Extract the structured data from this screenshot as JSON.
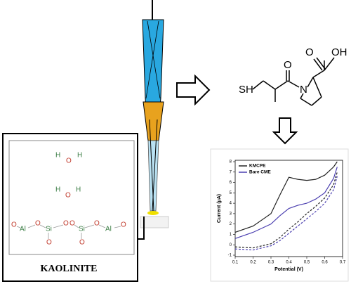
{
  "kaolinite": {
    "title": "KAOLINITE",
    "water1": [
      "H",
      "O",
      "H"
    ],
    "water2": [
      "H",
      "O",
      "H"
    ],
    "chain": [
      "O",
      "Al",
      "O",
      "Si",
      "O",
      "O",
      "Si",
      "O",
      "Al",
      "O",
      "O",
      "O"
    ]
  },
  "molecule": {
    "labels": [
      "SH",
      "N",
      "O",
      "O",
      "OH"
    ]
  },
  "chart_data": {
    "type": "line",
    "x_label": "Potential (V)",
    "y_label": "Current (µA)",
    "x": [
      0.1,
      0.2,
      0.3,
      0.35,
      0.4,
      0.45,
      0.5,
      0.55,
      0.6,
      0.65,
      0.67
    ],
    "series": [
      {
        "name": "KMCPE",
        "color": "#222222",
        "values": [
          1.2,
          1.8,
          3.0,
          4.8,
          6.5,
          6.3,
          6.2,
          6.3,
          6.7,
          7.5,
          8.0
        ],
        "return_values": [
          -0.2,
          -0.3,
          0.1,
          0.7,
          1.5,
          2.2,
          3.0,
          3.7,
          4.5,
          5.8,
          7.0
        ]
      },
      {
        "name": "Bare CME",
        "color": "#4b3fb0",
        "values": [
          0.6,
          1.2,
          2.0,
          2.8,
          3.5,
          3.8,
          4.0,
          4.4,
          5.0,
          6.4,
          7.5
        ],
        "return_values": [
          -0.4,
          -0.5,
          -0.1,
          0.4,
          1.1,
          1.8,
          2.5,
          3.2,
          4.0,
          5.3,
          6.6
        ]
      }
    ],
    "xlim": [
      0.1,
      0.7
    ],
    "ylim": [
      -1,
      8
    ],
    "xticks": [
      0.1,
      0.2,
      0.3,
      0.4,
      0.5,
      0.6,
      0.7
    ],
    "yticks": [
      -1,
      0,
      1,
      2,
      3,
      4,
      5,
      6,
      7,
      8
    ],
    "legend": "upper left"
  }
}
